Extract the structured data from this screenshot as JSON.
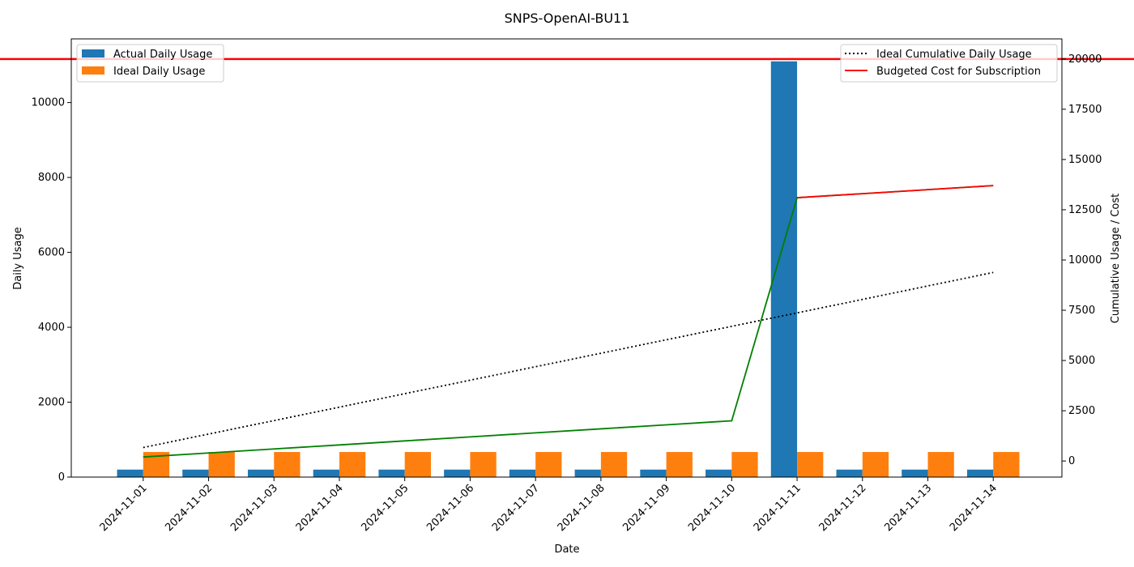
{
  "chart_data": {
    "type": "bar",
    "title": "SNPS-OpenAI-BU11",
    "xlabel": "Date",
    "ylabel": "Daily Usage",
    "y2label": "Cumulative Usage / Cost",
    "categories": [
      "2024-11-01",
      "2024-11-02",
      "2024-11-03",
      "2024-11-04",
      "2024-11-05",
      "2024-11-06",
      "2024-11-07",
      "2024-11-08",
      "2024-11-09",
      "2024-11-10",
      "2024-11-11",
      "2024-11-12",
      "2024-11-13",
      "2024-11-14"
    ],
    "ylim": [
      0,
      11700
    ],
    "y2lim": [
      -800,
      21000
    ],
    "yticks": [
      0,
      2000,
      4000,
      6000,
      8000,
      10000
    ],
    "y2ticks": [
      0,
      2500,
      5000,
      7500,
      10000,
      12500,
      15000,
      17500,
      20000
    ],
    "bar_series": [
      {
        "name": "Actual Daily Usage",
        "color": "#1f77b4",
        "values": [
          200,
          200,
          200,
          200,
          200,
          200,
          200,
          200,
          200,
          200,
          11100,
          200,
          200,
          200
        ]
      },
      {
        "name": "Ideal Daily Usage",
        "color": "#ff7f0e",
        "values": [
          670,
          670,
          670,
          670,
          670,
          670,
          670,
          670,
          670,
          670,
          670,
          670,
          670,
          670
        ]
      }
    ],
    "line_series": [
      {
        "name": "Ideal Cumulative Daily Usage",
        "color": "#000000",
        "style": "dotted",
        "values": [
          670,
          1340,
          2010,
          2680,
          3350,
          4020,
          4690,
          5360,
          6030,
          6700,
          7370,
          8040,
          8710,
          9380
        ]
      },
      {
        "name": "",
        "color": "#008000",
        "style": "solid",
        "values": [
          200,
          400,
          600,
          800,
          1000,
          1200,
          1400,
          1600,
          1800,
          2000,
          13100,
          13300,
          13500,
          13700
        ]
      },
      {
        "name": "",
        "color": "#ff0000",
        "style": "solid",
        "start_index": 10,
        "values": [
          13100,
          13300,
          13500,
          13700
        ]
      }
    ],
    "budget": {
      "name": "Budgeted Cost for Subscription",
      "value": 20000,
      "color": "#ff0000"
    },
    "grid": false,
    "legend_left_placement": "upper-left",
    "legend_right_placement": "upper-right"
  }
}
